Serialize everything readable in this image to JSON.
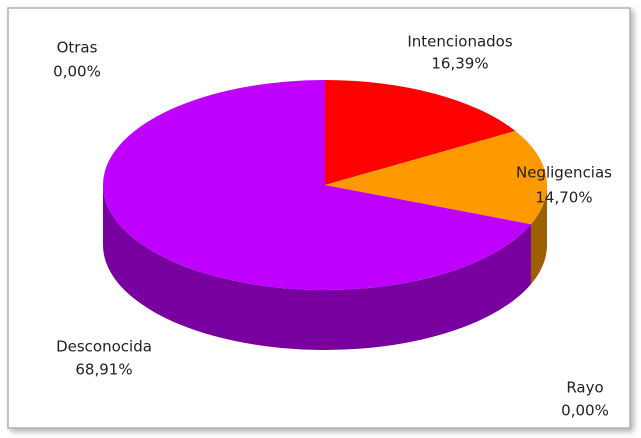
{
  "chart_data": {
    "type": "pie3d",
    "categories": [
      "Intencionados",
      "Negligencias",
      "Desconocida",
      "Rayo",
      "Otras"
    ],
    "values": [
      16.39,
      14.7,
      68.91,
      0,
      0
    ],
    "value_labels": [
      "16,39%",
      "14,70%",
      "68,91%",
      "0,00%",
      "0,00%"
    ],
    "colors": [
      "#ff0000",
      "#ff9900",
      "#c000ff",
      "#4472c4",
      "#70ad47"
    ]
  }
}
